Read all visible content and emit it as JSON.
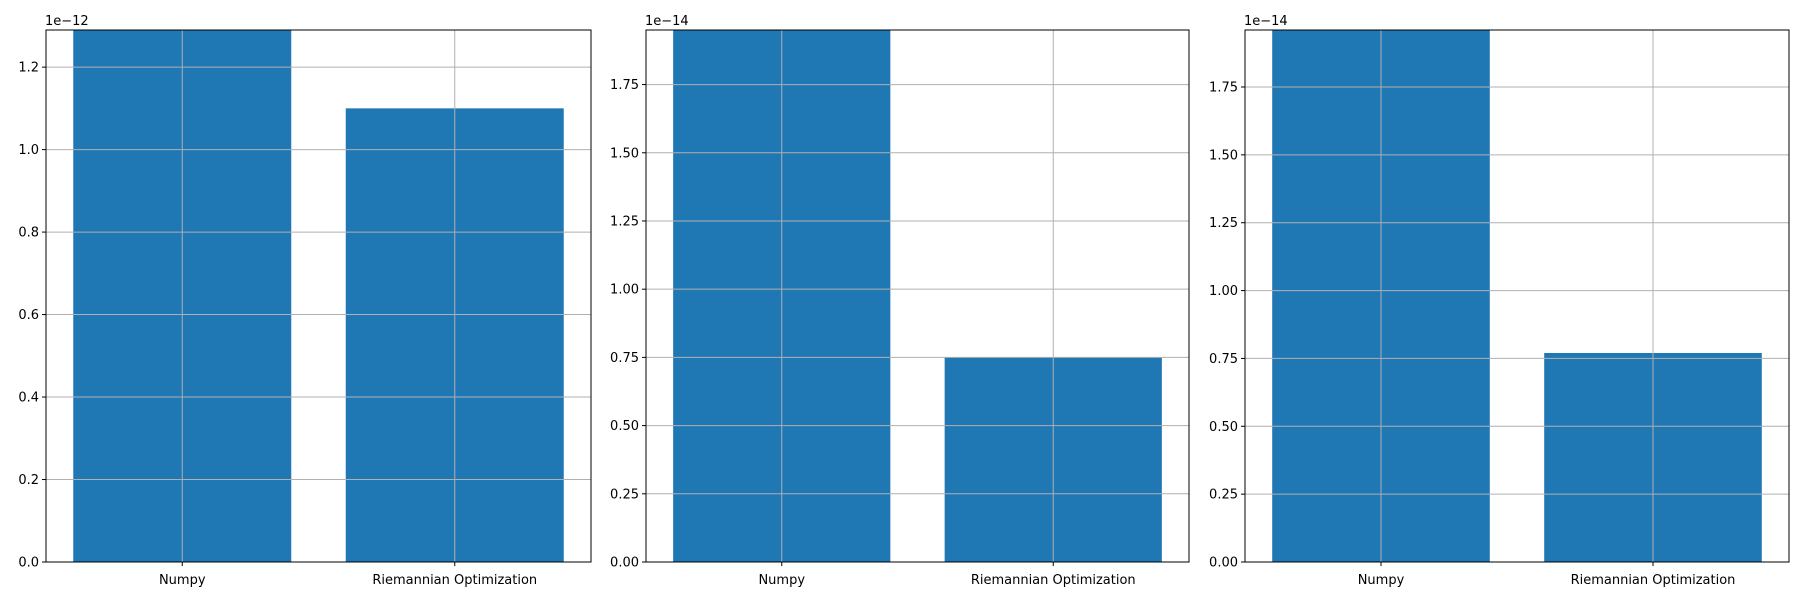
{
  "colors": {
    "bar": "#1f77b4",
    "grid": "#b0b0b0",
    "axis": "#000000",
    "background": "#ffffff"
  },
  "chart_data": [
    {
      "type": "bar",
      "categories": [
        "Numpy",
        "Riemannian Optimization"
      ],
      "values": [
        1.29e-12,
        1.1e-12
      ],
      "ylim": [
        0,
        1.29e-12
      ],
      "scale_exponent": -12,
      "offset_text": "1e−12",
      "yticks": [
        0,
        0.2,
        0.4,
        0.6,
        0.8,
        1.0,
        1.2
      ],
      "ytick_labels": [
        "0.0",
        "0.2",
        "0.4",
        "0.6",
        "0.8",
        "1.0",
        "1.2"
      ],
      "grid": true,
      "title": "",
      "xlabel": "",
      "ylabel": ""
    },
    {
      "type": "bar",
      "categories": [
        "Numpy",
        "Riemannian Optimization"
      ],
      "values": [
        1.95e-14,
        7.5e-15
      ],
      "ylim": [
        0,
        1.95e-14
      ],
      "scale_exponent": -14,
      "offset_text": "1e−14",
      "yticks": [
        0,
        0.25,
        0.5,
        0.75,
        1.0,
        1.25,
        1.5,
        1.75
      ],
      "ytick_labels": [
        "0.00",
        "0.25",
        "0.50",
        "0.75",
        "1.00",
        "1.25",
        "1.50",
        "1.75"
      ],
      "grid": true,
      "title": "",
      "xlabel": "",
      "ylabel": ""
    },
    {
      "type": "bar",
      "categories": [
        "Numpy",
        "Riemannian Optimization"
      ],
      "values": [
        1.96e-14,
        7.7e-15
      ],
      "ylim": [
        0,
        1.96e-14
      ],
      "scale_exponent": -14,
      "offset_text": "1e−14",
      "yticks": [
        0,
        0.25,
        0.5,
        0.75,
        1.0,
        1.25,
        1.5,
        1.75
      ],
      "ytick_labels": [
        "0.00",
        "0.25",
        "0.50",
        "0.75",
        "1.00",
        "1.25",
        "1.50",
        "1.75"
      ],
      "grid": true,
      "title": "",
      "xlabel": "",
      "ylabel": ""
    }
  ]
}
